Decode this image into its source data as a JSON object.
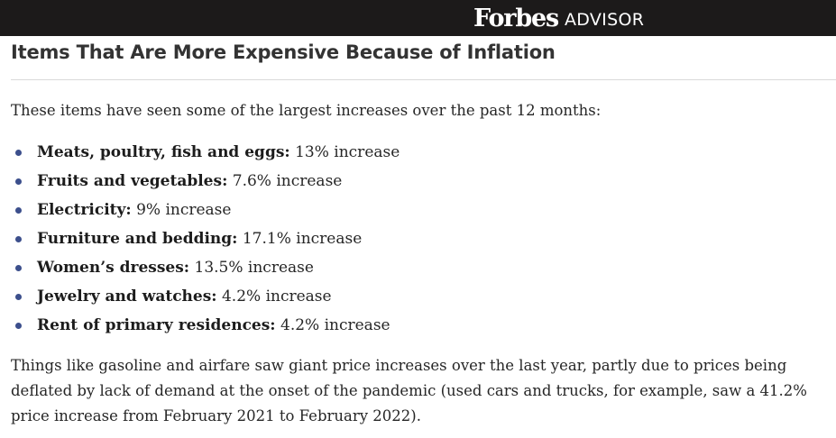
{
  "header": {
    "brand_main": "Forbes",
    "brand_sub": "ADVISOR",
    "background": "#1c1a1a"
  },
  "article": {
    "title": "Items That Are More Expensive Because of Inflation",
    "intro": "These items have seen some of the largest increases over the past 12 months:",
    "items": [
      {
        "label": "Meats, poultry, fish and eggs:",
        "value": " 13% increase"
      },
      {
        "label": "Fruits and vegetables:",
        "value": " 7.6% increase"
      },
      {
        "label": "Electricity:",
        "value": " 9% increase"
      },
      {
        "label": "Furniture and bedding:",
        "value": " 17.1% increase"
      },
      {
        "label": "Women’s dresses:",
        "value": " 13.5% increase"
      },
      {
        "label": "Jewelry and watches:",
        "value": " 4.2% increase"
      },
      {
        "label": "Rent of primary residences:",
        "value": " 4.2% increase"
      }
    ],
    "closing": "Things like gasoline and airfare saw giant price increases over the last year, partly due to prices being deflated by lack of demand at the onset of the pandemic (used cars and trucks, for example, saw a 41.2% price increase from February 2021 to February 2022).",
    "bullet_color": "#3c4f8c"
  }
}
